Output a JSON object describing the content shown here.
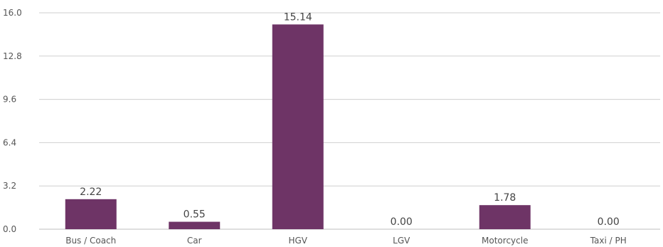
{
  "chart_data": {
    "type": "bar",
    "categories": [
      "Bus / Coach",
      "Car",
      "HGV",
      "LGV",
      "Motorcycle",
      "Taxi / PH"
    ],
    "values": [
      2.22,
      0.55,
      15.14,
      0.0,
      1.78,
      0.0
    ],
    "data_labels": [
      "2.22",
      "0.55",
      "15.14",
      "0.00",
      "1.78",
      "0.00"
    ],
    "y_ticks": [
      0.0,
      3.2,
      6.4,
      9.6,
      12.8,
      16.0
    ],
    "y_tick_labels": [
      "0.0",
      "3.2",
      "6.4",
      "9.6",
      "12.8",
      "16.0"
    ],
    "ylim": [
      0,
      16
    ],
    "grid": true,
    "legend": "none",
    "title": "",
    "xlabel": "",
    "ylabel": "",
    "colors": {
      "bar": "#6e3466",
      "grid": "#cfcfcf",
      "axis": "#bfbfbf"
    }
  }
}
